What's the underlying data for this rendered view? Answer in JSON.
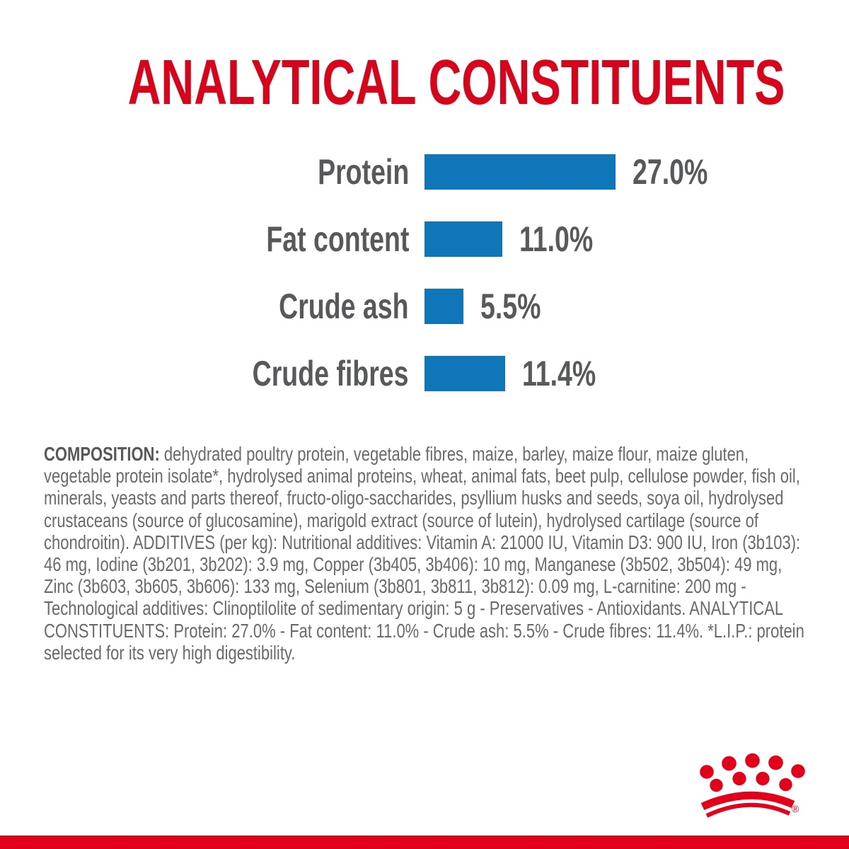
{
  "page": {
    "background": "#ffffff",
    "title_red": "#d8041c",
    "brand_red": "#e2001a",
    "bar_blue": "#0f76ba",
    "label_gray": "#58595b",
    "body_gray": "#696a6c"
  },
  "title": "ANALYTICAL CONSTITUENTS",
  "chart_data": {
    "type": "bar",
    "orientation": "horizontal",
    "title": "ANALYTICAL CONSTITUENTS",
    "categories": [
      "Protein",
      "Fat content",
      "Crude ash",
      "Crude fibres"
    ],
    "values": [
      27.0,
      11.0,
      5.5,
      11.4
    ],
    "value_labels": [
      "27.0%",
      "11.0%",
      "5.5%",
      "11.4%"
    ],
    "unit": "%",
    "xlim": [
      0,
      30
    ],
    "bar_color": "#0f76ba",
    "grid": false,
    "legend": false
  },
  "composition": {
    "label": "COMPOSITION:",
    "body": " dehydrated poultry protein, vegetable fibres, maize, barley, maize flour, maize gluten, vegetable protein isolate*, hydrolysed animal proteins, wheat, animal fats, beet pulp, cellulose powder, fish oil, minerals, yeasts and parts thereof, fructo-oligo-saccharides, psyllium husks and seeds, soya oil, hydrolysed crustaceans (source of glucosamine), marigold extract (source of lutein), hydrolysed cartilage (source of chondroitin). ADDITIVES (per kg): Nutritional additives: Vitamin A: 21000 IU, Vitamin D3: 900 IU, Iron (3b103): 46 mg, Iodine (3b201, 3b202): 3.9 mg, Copper (3b405, 3b406): 10 mg, Manganese (3b502, 3b504): 49 mg, Zinc (3b603, 3b605, 3b606): 133 mg, Selenium (3b801, 3b811, 3b812): 0.09 mg, L-carnitine: 200 mg - Technological additives: Clinoptilolite of sedimentary origin: 5 g - Preservatives - Antioxidants. ANALYTICAL CONSTITUENTS: Protein: 27.0% - Fat content: 11.0% - Crude ash: 5.5% - Crude fibres: 11.4%. *L.I.P.: protein selected for its very high digestibility."
  },
  "logo": {
    "name": "royal-canin-crown",
    "color": "#e2001a",
    "registered_symbol": "®"
  }
}
